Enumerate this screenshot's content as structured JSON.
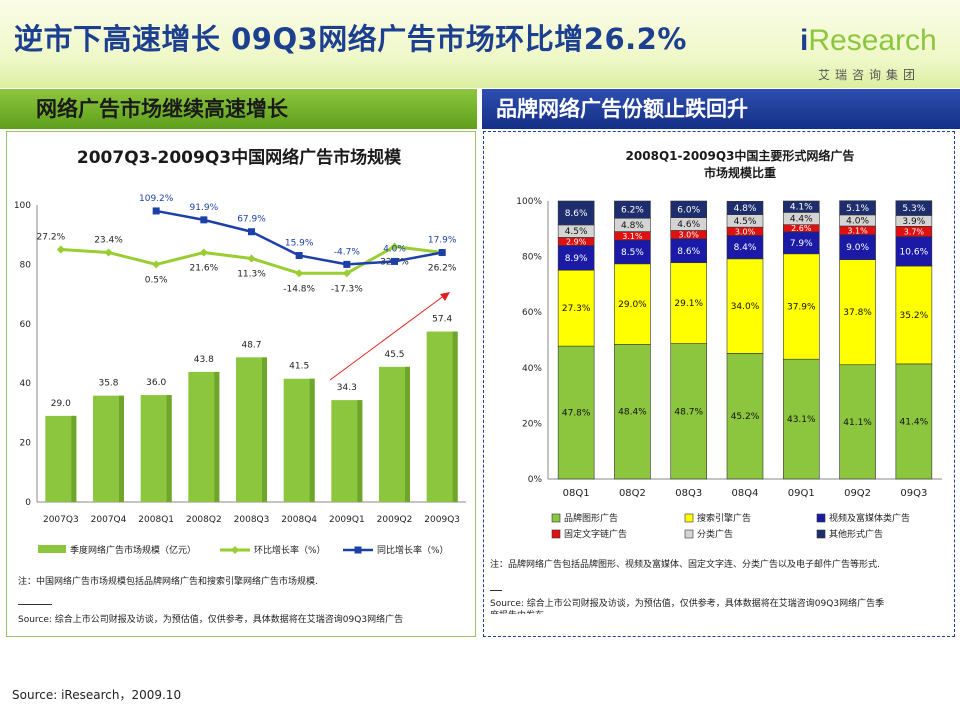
{
  "slide": {
    "title": "逆市下高速增长 09Q3网络广告市场环比增26.2%",
    "logo_i": "i",
    "logo_rest": "Research",
    "logo_sub": "艾瑞咨询集团",
    "left_header": "网络广告市场继续高速增长",
    "right_header": "品牌网络广告份额止跌回升",
    "footer": "Source: iResearch，2009.10"
  },
  "left_panel": {
    "note": "注：中国网络广告市场规模包括品牌网络广告和搜索引擎网络广告市场规模.",
    "source": "Source: 综合上市公司财报及访谈，为预估值，仅供参考，具体数据将在艾瑞咨询09Q3网络广告"
  },
  "right_panel": {
    "note": "注：品牌网络广告包括品牌图形、视频及富媒体、固定文字连、分类广告以及电子邮件广告等形式.",
    "source_line1": "Source: 综合上市公司财报及访谈，为预估值，仅供参考，具体数据将在艾瑞咨询09Q3网络广告季",
    "source_line2": "度报告中发布"
  },
  "colors": {
    "green": "#8cc63f",
    "dark_green": "#5e9f1c",
    "blue": "#1c3f8f",
    "navy_bar": "#1e2d6e",
    "title_blue": "#1c3f8f"
  },
  "chart_data": [
    {
      "type": "bar",
      "title": "2007Q3-2009Q3中国网络广告市场规模",
      "categories": [
        "2007Q3",
        "2007Q4",
        "2008Q1",
        "2008Q2",
        "2008Q3",
        "2008Q4",
        "2009Q1",
        "2009Q2",
        "2009Q3"
      ],
      "ylim": [
        0,
        100
      ],
      "yticks": [
        0,
        20,
        40,
        60,
        80,
        100
      ],
      "series": [
        {
          "name": "季度网络广告市场规模（亿元）",
          "kind": "bar",
          "values": [
            29.0,
            35.8,
            36.0,
            43.8,
            48.7,
            41.5,
            34.3,
            45.5,
            57.4
          ],
          "labels": [
            "29.0",
            "35.8",
            "36.0",
            "43.8",
            "48.7",
            "41.5",
            "34.3",
            "45.5",
            "57.4"
          ]
        },
        {
          "name": "环比增长率（%）",
          "kind": "line",
          "plot_values": [
            85,
            84,
            80,
            84,
            82,
            77,
            77,
            86,
            84
          ],
          "labels": [
            "27.2%",
            "23.4%",
            "0.5%",
            "21.6%",
            "11.3%",
            "-14.8%",
            "-17.3%",
            "32.7%",
            "26.2%"
          ],
          "label_dy": [
            -10,
            -10,
            18,
            18,
            18,
            18,
            18,
            18,
            18
          ]
        },
        {
          "name": "同比增长率（%）",
          "kind": "line",
          "start_index": 2,
          "plot_values": [
            98,
            95,
            91,
            83,
            80,
            81,
            84
          ],
          "labels": [
            "109.2%",
            "91.9%",
            "67.9%",
            "15.9%",
            "-4.7%",
            "4.0%",
            "17.9%"
          ]
        }
      ],
      "legend": [
        "季度网络广告市场规模（亿元）",
        "环比增长率（%）",
        "同比增长率（%）"
      ]
    },
    {
      "type": "bar",
      "stacked": true,
      "title_line1": "2008Q1-2009Q3中国主要形式网络广告",
      "title_line2": "市场规模比重",
      "categories": [
        "08Q1",
        "08Q2",
        "08Q3",
        "08Q4",
        "09Q1",
        "09Q2",
        "09Q3"
      ],
      "ylim": [
        0,
        100
      ],
      "yticks": [
        "0%",
        "20%",
        "40%",
        "60%",
        "80%",
        "100%"
      ],
      "series": [
        {
          "name": "品牌图形广告",
          "color": "#8cc63f",
          "values": [
            47.8,
            48.4,
            48.7,
            45.2,
            43.1,
            41.1,
            41.4
          ]
        },
        {
          "name": "搜索引擎广告",
          "color": "#ffff00",
          "values": [
            27.3,
            29.0,
            29.1,
            34.0,
            37.9,
            37.8,
            35.2
          ]
        },
        {
          "name": "视频及富媒体类广告",
          "color": "#1a1aa6",
          "values": [
            8.9,
            8.5,
            8.6,
            8.4,
            7.9,
            9.0,
            10.6
          ]
        },
        {
          "name": "固定文字链广告",
          "color": "#e01010",
          "values": [
            2.9,
            3.1,
            3.0,
            3.0,
            2.6,
            3.1,
            3.7
          ]
        },
        {
          "name": "分类广告",
          "color": "#d4d4d4",
          "values": [
            4.5,
            4.8,
            4.6,
            4.5,
            4.4,
            4.0,
            3.9
          ]
        },
        {
          "name": "其他形式广告",
          "color": "#1e2d6e",
          "values": [
            8.6,
            6.2,
            6.0,
            4.8,
            4.1,
            5.1,
            5.3
          ]
        }
      ],
      "legend": [
        "品牌图形广告",
        "搜索引擎广告",
        "视频及富媒体类广告",
        "固定文字链广告",
        "分类广告",
        "其他形式广告"
      ]
    }
  ]
}
